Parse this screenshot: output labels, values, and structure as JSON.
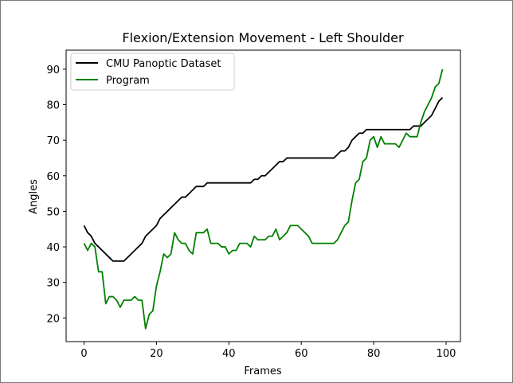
{
  "chart_data": {
    "type": "line",
    "title": "Flexion/Extension Movement - Left Shoulder",
    "xlabel": "Frames",
    "ylabel": "Angles",
    "xlim": [
      -4.95,
      103.95
    ],
    "ylim": [
      13.35,
      95.35
    ],
    "xticks": [
      0,
      20,
      40,
      60,
      80,
      100
    ],
    "yticks": [
      20,
      30,
      40,
      50,
      60,
      70,
      80,
      90
    ],
    "grid": false,
    "legend_position": "upper-left",
    "series": [
      {
        "name": "CMU Panoptic Dataset",
        "color": "#000000",
        "x": [
          0,
          1,
          2,
          3,
          4,
          5,
          6,
          7,
          8,
          9,
          10,
          11,
          12,
          13,
          14,
          15,
          16,
          17,
          18,
          19,
          20,
          21,
          22,
          23,
          24,
          25,
          26,
          27,
          28,
          29,
          30,
          31,
          32,
          33,
          34,
          35,
          36,
          37,
          38,
          39,
          40,
          41,
          42,
          43,
          44,
          45,
          46,
          47,
          48,
          49,
          50,
          51,
          52,
          53,
          54,
          55,
          56,
          57,
          58,
          59,
          60,
          61,
          62,
          63,
          64,
          65,
          66,
          67,
          68,
          69,
          70,
          71,
          72,
          73,
          74,
          75,
          76,
          77,
          78,
          79,
          80,
          81,
          82,
          83,
          84,
          85,
          86,
          87,
          88,
          89,
          90,
          91,
          92,
          93,
          94,
          95,
          96,
          97,
          98,
          99
        ],
        "y": [
          46,
          44,
          43,
          41,
          40,
          39,
          38,
          37,
          36,
          36,
          36,
          36,
          37,
          38,
          39,
          40,
          41,
          43,
          44,
          45,
          46,
          48,
          49,
          50,
          51,
          52,
          53,
          54,
          54,
          55,
          56,
          57,
          57,
          57,
          58,
          58,
          58,
          58,
          58,
          58,
          58,
          58,
          58,
          58,
          58,
          58,
          58,
          59,
          59,
          60,
          60,
          61,
          62,
          63,
          64,
          64,
          65,
          65,
          65,
          65,
          65,
          65,
          65,
          65,
          65,
          65,
          65,
          65,
          65,
          65,
          66,
          67,
          67,
          68,
          70,
          71,
          72,
          72,
          73,
          73,
          73,
          73,
          73,
          73,
          73,
          73,
          73,
          73,
          73,
          73,
          73,
          74,
          74,
          74,
          75,
          76,
          77,
          79,
          81,
          82
        ]
      },
      {
        "name": "Program",
        "color": "#008000",
        "x": [
          0,
          1,
          2,
          3,
          4,
          5,
          6,
          7,
          8,
          9,
          10,
          11,
          12,
          13,
          14,
          15,
          16,
          17,
          18,
          19,
          20,
          21,
          22,
          23,
          24,
          25,
          26,
          27,
          28,
          29,
          30,
          31,
          32,
          33,
          34,
          35,
          36,
          37,
          38,
          39,
          40,
          41,
          42,
          43,
          44,
          45,
          46,
          47,
          48,
          49,
          50,
          51,
          52,
          53,
          54,
          55,
          56,
          57,
          58,
          59,
          60,
          61,
          62,
          63,
          64,
          65,
          66,
          67,
          68,
          69,
          70,
          71,
          72,
          73,
          74,
          75,
          76,
          77,
          78,
          79,
          80,
          81,
          82,
          83,
          84,
          85,
          86,
          87,
          88,
          89,
          90,
          91,
          92,
          93,
          94,
          95,
          96,
          97,
          98,
          99
        ],
        "y": [
          41,
          39,
          41,
          40,
          33,
          33,
          24,
          26,
          26,
          25,
          23,
          25,
          25,
          25,
          26,
          25,
          25,
          17,
          21,
          22,
          29,
          33,
          38,
          37,
          38,
          44,
          42,
          41,
          41,
          39,
          38,
          44,
          44,
          44,
          45,
          41,
          41,
          41,
          40,
          40,
          38,
          39,
          39,
          41,
          41,
          41,
          40,
          43,
          42,
          42,
          42,
          43,
          43,
          45,
          42,
          43,
          44,
          46,
          46,
          46,
          45,
          44,
          43,
          41,
          41,
          41,
          41,
          41,
          41,
          41,
          42,
          44,
          46,
          47,
          53,
          58,
          59,
          64,
          65,
          70,
          71,
          68,
          71,
          69,
          69,
          69,
          69,
          68,
          70,
          72,
          71,
          71,
          71,
          75,
          78,
          80,
          82,
          85,
          86,
          90
        ]
      }
    ]
  }
}
